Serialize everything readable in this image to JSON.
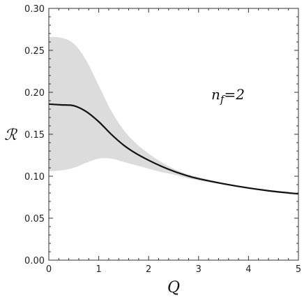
{
  "chart_data": {
    "type": "line",
    "title": "",
    "xlabel": "Q",
    "ylabel": "ℛ",
    "xlim": [
      0,
      5
    ],
    "ylim": [
      0,
      0.3
    ],
    "x_ticks": [
      "0",
      "1",
      "2",
      "3",
      "4",
      "5"
    ],
    "y_ticks": [
      "0.00",
      "0.05",
      "0.10",
      "0.15",
      "0.20",
      "0.25",
      "0.30"
    ],
    "x_tick_values": [
      0,
      1,
      2,
      3,
      4,
      5
    ],
    "y_tick_values": [
      0,
      0.05,
      0.1,
      0.15,
      0.2,
      0.25,
      0.3
    ],
    "annotation": "n_f=2",
    "annotation_main": "n",
    "annotation_sub": "f",
    "annotation_rest": "=2",
    "grid": false,
    "line_color": "#111111",
    "band_color": "#dcdcdc",
    "series": [
      {
        "x": [
          0,
          0.25,
          0.5,
          0.75,
          1.0,
          1.25,
          1.5,
          1.75,
          2.0,
          2.25,
          2.5,
          2.75,
          3.0,
          3.5,
          4.0,
          4.5,
          5.0
        ],
        "values": [
          0.186,
          0.185,
          0.184,
          0.177,
          0.165,
          0.15,
          0.137,
          0.127,
          0.119,
          0.112,
          0.106,
          0.101,
          0.097,
          0.091,
          0.086,
          0.082,
          0.079
        ]
      }
    ],
    "band": {
      "x": [
        0,
        0.25,
        0.5,
        0.75,
        1.0,
        1.25,
        1.5,
        1.75,
        2.0,
        2.25,
        2.5,
        2.75,
        3.0,
        3.5,
        4.0,
        4.5,
        5.0
      ],
      "upper": [
        0.266,
        0.265,
        0.258,
        0.238,
        0.208,
        0.178,
        0.155,
        0.139,
        0.127,
        0.117,
        0.109,
        0.103,
        0.099,
        0.092,
        0.087,
        0.083,
        0.08
      ],
      "lower": [
        0.106,
        0.107,
        0.11,
        0.116,
        0.121,
        0.121,
        0.117,
        0.113,
        0.109,
        0.105,
        0.102,
        0.098,
        0.095,
        0.09,
        0.085,
        0.081,
        0.078
      ]
    }
  }
}
